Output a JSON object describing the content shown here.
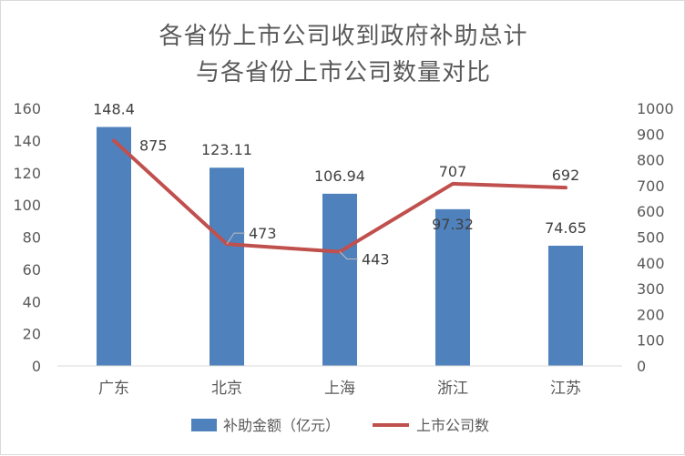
{
  "chart_data": {
    "type": "bar",
    "title_lines": [
      "各省份上市公司收到政府补助总计",
      "与各省份上市公司数量对比"
    ],
    "categories": [
      "广东",
      "北京",
      "上海",
      "浙江",
      "江苏"
    ],
    "series": [
      {
        "name": "补助金额（亿元）",
        "type": "bar",
        "axis": "left",
        "color": "#4f81bd",
        "values": [
          148.4,
          123.11,
          106.94,
          97.32,
          74.65
        ],
        "labels": [
          "148.4",
          "123.11",
          "106.94",
          "97.32",
          "74.65"
        ]
      },
      {
        "name": "上市公司数",
        "type": "line",
        "axis": "right",
        "color": "#c0504d",
        "values": [
          875,
          473,
          443,
          707,
          692
        ],
        "labels": [
          "875",
          "473",
          "443",
          "707",
          "692"
        ]
      }
    ],
    "y_left": {
      "ylim": [
        0,
        160
      ],
      "ticks": [
        "0",
        "20",
        "40",
        "60",
        "80",
        "100",
        "120",
        "140",
        "160"
      ]
    },
    "y_right": {
      "ylim": [
        0,
        1000
      ],
      "ticks": [
        "0",
        "100",
        "200",
        "300",
        "400",
        "500",
        "600",
        "700",
        "800",
        "900",
        "1000"
      ]
    },
    "grid": false,
    "legend_position": "bottom"
  }
}
